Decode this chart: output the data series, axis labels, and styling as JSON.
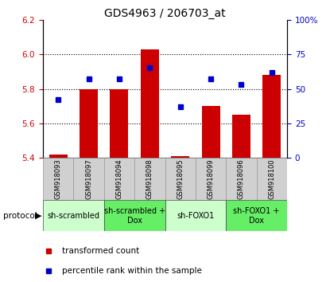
{
  "title": "GDS4963 / 206703_at",
  "samples": [
    "GSM918093",
    "GSM918097",
    "GSM918094",
    "GSM918098",
    "GSM918095",
    "GSM918099",
    "GSM918096",
    "GSM918100"
  ],
  "transformed_count": [
    5.42,
    5.8,
    5.8,
    6.03,
    5.41,
    5.7,
    5.65,
    5.88
  ],
  "percentile_rank": [
    42,
    57,
    57,
    65,
    37,
    57,
    53,
    62
  ],
  "ylim_left": [
    5.4,
    6.2
  ],
  "ylim_right": [
    0,
    100
  ],
  "yticks_left": [
    5.4,
    5.6,
    5.8,
    6.0,
    6.2
  ],
  "yticks_right": [
    0,
    25,
    50,
    75,
    100
  ],
  "ytick_labels_right": [
    "0",
    "25",
    "50",
    "75",
    "100%"
  ],
  "bar_color": "#cc0000",
  "marker_color": "#0000cc",
  "bar_bottom": 5.4,
  "groups": [
    {
      "label": "sh-scrambled",
      "start": 0,
      "end": 2,
      "color": "#ccffcc"
    },
    {
      "label": "sh-scrambled +\nDox",
      "start": 2,
      "end": 4,
      "color": "#66ee66"
    },
    {
      "label": "sh-FOXO1",
      "start": 4,
      "end": 6,
      "color": "#ccffcc"
    },
    {
      "label": "sh-FOXO1 +\nDox",
      "start": 6,
      "end": 8,
      "color": "#66ee66"
    }
  ],
  "protocol_label": "protocol",
  "legend_items": [
    {
      "color": "#cc0000",
      "label": "transformed count"
    },
    {
      "color": "#0000cc",
      "label": "percentile rank within the sample"
    }
  ],
  "dotted_lines": [
    5.6,
    5.8,
    6.0
  ],
  "title_fontsize": 10,
  "tick_fontsize": 7.5,
  "sample_fontsize": 6.0,
  "group_fontsize": 7.0,
  "legend_fontsize": 7.5
}
